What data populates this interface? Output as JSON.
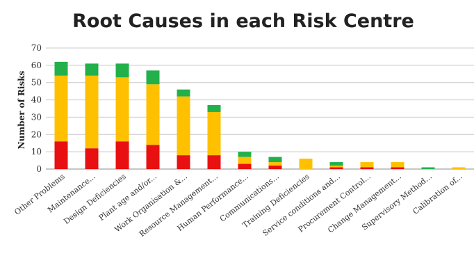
{
  "chart_data": {
    "type": "bar",
    "stacked": true,
    "title": "Root Causes in each Risk Centre",
    "ylabel": "Number of Risks",
    "xlabel": "",
    "ylim": [
      0,
      70
    ],
    "yticks": [
      0,
      10,
      20,
      30,
      40,
      50,
      60,
      70
    ],
    "grid": true,
    "categories": [
      "Other Problems",
      "Maintenance...",
      "Design Deficiencies",
      "Plant age and/or...",
      "Work Organisation &...",
      "Resource Management...",
      "Human Performance...",
      "Communications...",
      "Training Deficiencies",
      "Service conditions and...",
      "Procurement Control...",
      "Change Management...",
      "Supervisory Method...",
      "Calibration of..."
    ],
    "series": [
      {
        "color": "#e81010",
        "values": [
          16,
          12,
          16,
          14,
          8,
          8,
          3,
          2,
          0,
          1,
          1,
          1,
          0,
          0
        ]
      },
      {
        "color": "#ffc000",
        "values": [
          38,
          42,
          37,
          35,
          34,
          25,
          4,
          2,
          6,
          1,
          3,
          3,
          0,
          1
        ]
      },
      {
        "color": "#22b04b",
        "values": [
          8,
          7,
          8,
          8,
          4,
          4,
          3,
          3,
          0,
          2,
          0,
          0,
          1,
          0
        ]
      }
    ]
  }
}
